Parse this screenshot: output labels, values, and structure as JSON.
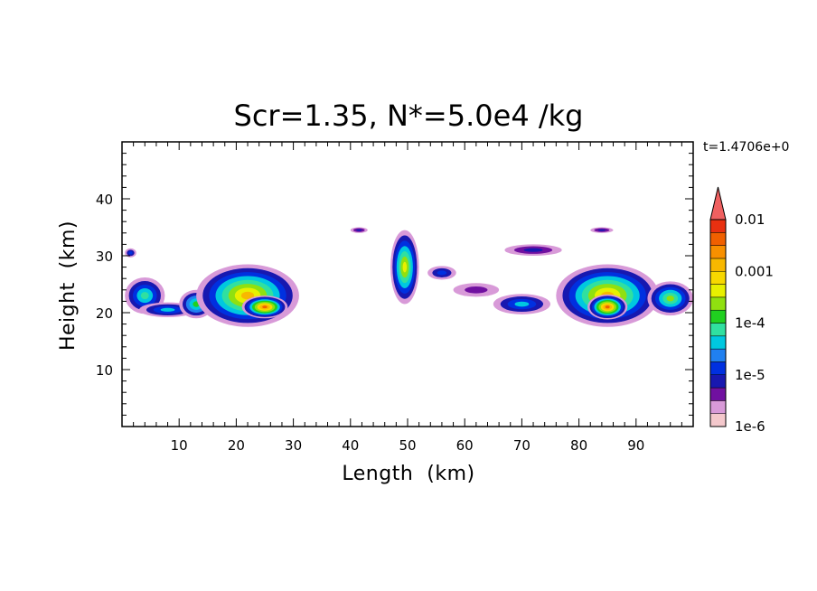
{
  "chart_data": {
    "type": "heatmap",
    "title": "Scr=1.35, N*=5.0e4 /kg",
    "xlabel": "Length  (km)",
    "ylabel": "Height  (km)",
    "time_label": "t=1.4706e+0",
    "xlim": [
      0,
      100
    ],
    "ylim": [
      0,
      50
    ],
    "xticks": [
      10,
      20,
      30,
      40,
      50,
      60,
      70,
      80,
      90
    ],
    "yticks": [
      10,
      20,
      30,
      40
    ],
    "colorbar": {
      "scale": "log",
      "range": [
        1e-06,
        0.01
      ],
      "tick_labels": [
        "0.01",
        "0.001",
        "1e-4",
        "1e-5",
        "1e-6"
      ],
      "colors": [
        "#f4c8cc",
        "#d89ad8",
        "#7010a0",
        "#1818b0",
        "#0030e0",
        "#2080f0",
        "#00c8e0",
        "#30e0a0",
        "#20d020",
        "#90e010",
        "#e8f000",
        "#f8d800",
        "#f8b800",
        "#f89000",
        "#f06000",
        "#e83010",
        "#f06060"
      ]
    },
    "regions": [
      {
        "x": 4,
        "y": 23,
        "rx": 3.5,
        "ry": 3.2,
        "level": 0.4
      },
      {
        "x": 8,
        "y": 20.5,
        "rx": 5,
        "ry": 1.3,
        "level": 0.3
      },
      {
        "x": 13,
        "y": 21.5,
        "rx": 3,
        "ry": 2.5,
        "level": 0.45
      },
      {
        "x": 22,
        "y": 23,
        "rx": 9,
        "ry": 5.5,
        "level": 0.7
      },
      {
        "x": 25,
        "y": 21,
        "rx": 4,
        "ry": 2,
        "level": 0.85
      },
      {
        "x": 49.5,
        "y": 28,
        "rx": 2.5,
        "ry": 6.5,
        "level": 0.6
      },
      {
        "x": 56,
        "y": 27,
        "rx": 2.5,
        "ry": 1.2,
        "level": 0.2
      },
      {
        "x": 62,
        "y": 24,
        "rx": 4,
        "ry": 1.2,
        "level": 0.05
      },
      {
        "x": 70,
        "y": 21.5,
        "rx": 5,
        "ry": 1.8,
        "level": 0.35
      },
      {
        "x": 85,
        "y": 23,
        "rx": 9,
        "ry": 5.5,
        "level": 0.75
      },
      {
        "x": 85,
        "y": 21,
        "rx": 3.5,
        "ry": 2.2,
        "level": 0.85
      },
      {
        "x": 96,
        "y": 22.5,
        "rx": 4,
        "ry": 3,
        "level": 0.5
      },
      {
        "x": 72,
        "y": 31,
        "rx": 5,
        "ry": 1,
        "level": 0.1
      },
      {
        "x": 41.5,
        "y": 34.5,
        "rx": 1.5,
        "ry": 0.5,
        "level": 0.15
      },
      {
        "x": 84,
        "y": 34.5,
        "rx": 2,
        "ry": 0.5,
        "level": 0.15
      },
      {
        "x": 1.5,
        "y": 30.5,
        "rx": 1,
        "ry": 0.8,
        "level": 0.2
      }
    ]
  }
}
